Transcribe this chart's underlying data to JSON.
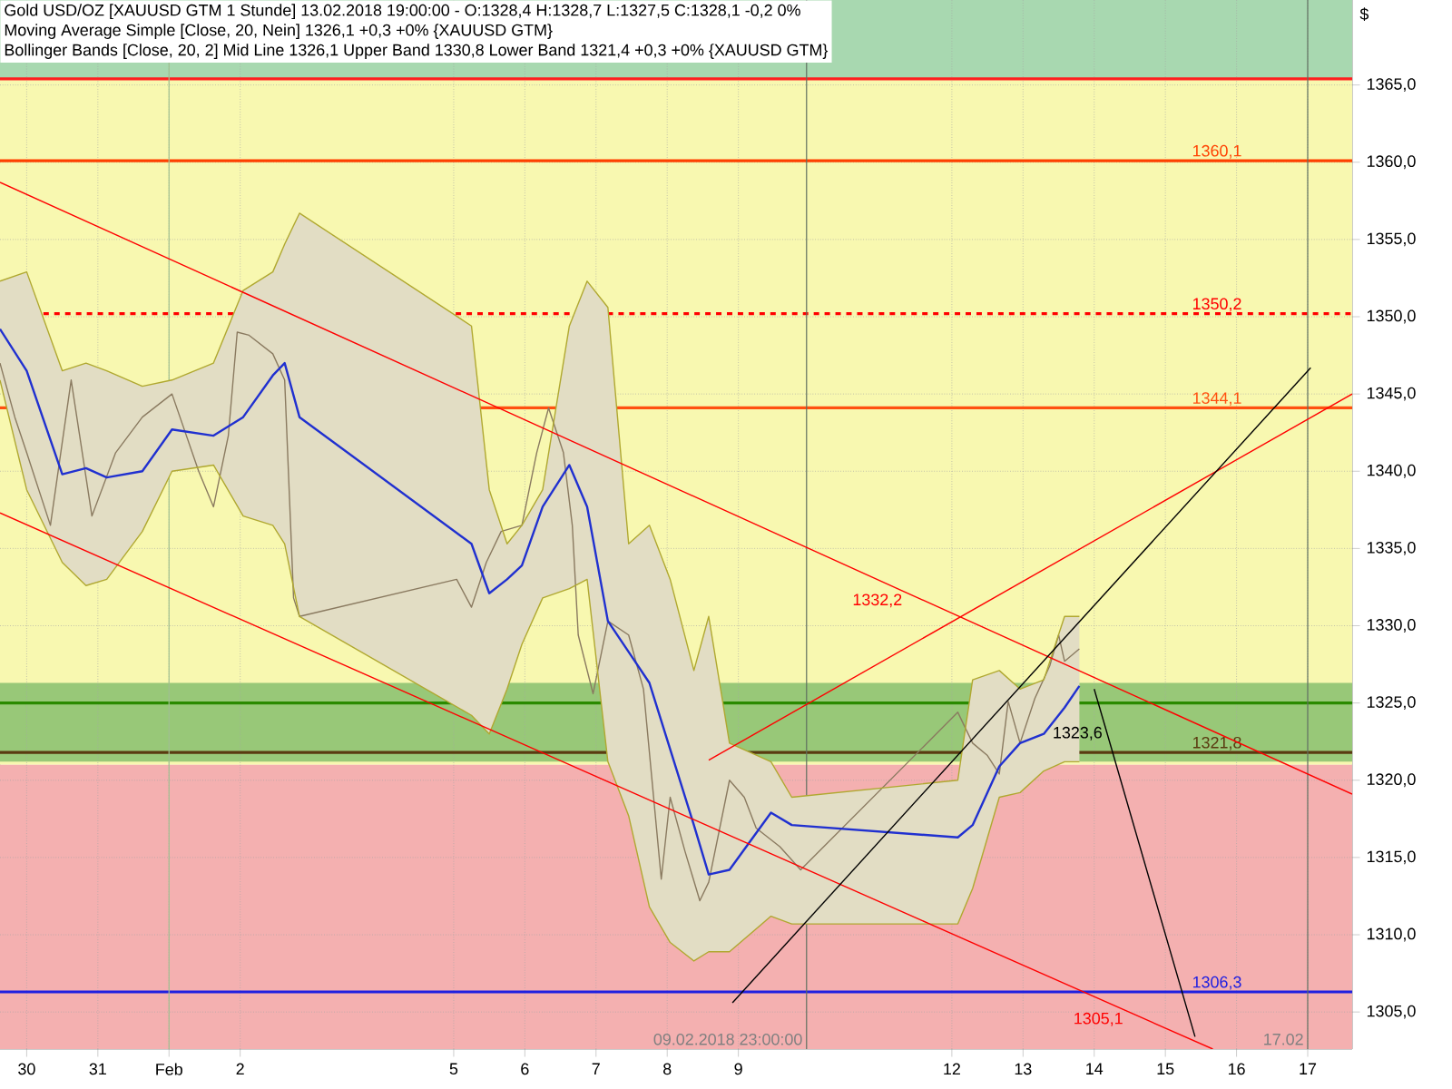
{
  "chart_data": {
    "type": "line",
    "title": "Gold USD/OZ [XAUUSD GTM  1 Stunde] 13.02.2018 19:00:00 - O:1328,4 H:1328,7 L:1327,5 C:1328,1 -0,2 0%",
    "ylabel": "$",
    "annotations": [
      "Moving Average Simple [Close, 20, Nein] 1326,1 +0,3 +0% {XAUUSD GTM}",
      "Bollinger Bands [Close, 20, 2] Mid Line 1326,1 Upper Band 1330,8 Lower Band 1321,4 +0,3 +0% {XAUUSD GTM}"
    ],
    "xlim": [
      "2018-01-29T15:00",
      "2018-02-17T15:00"
    ],
    "ylim": [
      1302.6,
      1370.5
    ],
    "xticks": [
      {
        "value": "2018-01-30",
        "label": "30"
      },
      {
        "value": "2018-01-31",
        "label": "31"
      },
      {
        "value": "2018-02-01",
        "label": "Feb"
      },
      {
        "value": "2018-02-02",
        "label": "2"
      },
      {
        "value": "2018-02-05",
        "label": "5"
      },
      {
        "value": "2018-02-06",
        "label": "6"
      },
      {
        "value": "2018-02-07",
        "label": "7"
      },
      {
        "value": "2018-02-08",
        "label": "8"
      },
      {
        "value": "2018-02-09",
        "label": "9"
      },
      {
        "value": "2018-02-12",
        "label": "12"
      },
      {
        "value": "2018-02-13",
        "label": "13"
      },
      {
        "value": "2018-02-14",
        "label": "14"
      },
      {
        "value": "2018-02-15",
        "label": "15"
      },
      {
        "value": "2018-02-16",
        "label": "16"
      },
      {
        "value": "2018-02-17",
        "label": "17"
      }
    ],
    "yticks": [
      {
        "value": 1305,
        "label": "1305,0"
      },
      {
        "value": 1310,
        "label": "1310,0"
      },
      {
        "value": 1315,
        "label": "1315,0"
      },
      {
        "value": 1320,
        "label": "1320,0"
      },
      {
        "value": 1325,
        "label": "1325,0"
      },
      {
        "value": 1330,
        "label": "1330,0"
      },
      {
        "value": 1335,
        "label": "1335,0"
      },
      {
        "value": 1340,
        "label": "1340,0"
      },
      {
        "value": 1345,
        "label": "1345,0"
      },
      {
        "value": 1350,
        "label": "1350,0"
      },
      {
        "value": 1355,
        "label": "1355,0"
      },
      {
        "value": 1360,
        "label": "1360,0"
      },
      {
        "value": 1365,
        "label": "1365,0"
      }
    ],
    "grid": true,
    "bands": [
      {
        "axis": "y",
        "from": 1365.4,
        "to": 1370.5,
        "color": "#a8d8b0"
      },
      {
        "axis": "y",
        "from": 1321.0,
        "to": 1365.4,
        "color": "#f8f8b0"
      },
      {
        "axis": "y",
        "from": 1302.6,
        "to": 1321.0,
        "color": "#f4b0b0"
      },
      {
        "axis": "y",
        "from": 1321.2,
        "to": 1326.3,
        "color": "#98c878"
      }
    ],
    "ref_lines": [
      {
        "axis": "y",
        "value": 1365.4,
        "label": null,
        "color": "#ff2020"
      },
      {
        "axis": "y",
        "value": 1360.1,
        "label": "1360,1",
        "color": "#ff4000"
      },
      {
        "axis": "y",
        "value": 1350.2,
        "label": "1350,2",
        "color": "#ff0000",
        "line_style": "dashed"
      },
      {
        "axis": "y",
        "value": 1344.1,
        "label": "1344,1",
        "color": "#ff5010"
      },
      {
        "axis": "y",
        "value": 1325.0,
        "label": null,
        "color": "#2a8a00"
      },
      {
        "axis": "y",
        "value": 1321.8,
        "label": "1321,8",
        "color": "#5a3a10"
      },
      {
        "axis": "y",
        "value": 1306.3,
        "label": "1306,3",
        "color": "#2020e0"
      },
      {
        "axis": "x",
        "value": "2018-02-01",
        "label": null,
        "color": "#a0c090"
      },
      {
        "axis": "x",
        "value": "2018-02-09T23:00",
        "label": "09.02.2018 23:00:00",
        "color": "#607060"
      },
      {
        "axis": "x",
        "value": "2018-02-17",
        "label": "17.02",
        "color": "#607060"
      }
    ],
    "series": [
      {
        "color": "#8a7a60",
        "x": [
          "2018-01-29T15:00",
          "2018-01-29T20:00",
          "2018-01-30T00:00",
          "2018-01-30T08:00",
          "2018-01-30T15:00",
          "2018-01-30T22:00",
          "2018-01-31T06:00",
          "2018-01-31T15:00",
          "2018-02-01T01:00",
          "2018-02-01T10:00",
          "2018-02-01T15:00",
          "2018-02-01T20:00",
          "2018-02-01T23:00",
          "2018-02-02T03:00",
          "2018-02-02T11:00",
          "2018-02-02T15:00",
          "2018-02-02T18:00",
          "2018-02-02T20:00",
          "2018-02-05T01:00",
          "2018-02-05T06:00",
          "2018-02-05T11:00",
          "2018-02-05T16:00",
          "2018-02-05T23:00",
          "2018-02-06T04:00",
          "2018-02-06T08:00",
          "2018-02-06T13:00",
          "2018-02-06T16:00",
          "2018-02-06T18:00",
          "2018-02-06T23:00",
          "2018-02-07T04:00",
          "2018-02-07T11:00",
          "2018-02-07T16:00",
          "2018-02-07T20:00",
          "2018-02-07T22:00",
          "2018-02-08T01:00",
          "2018-02-08T06:00",
          "2018-02-08T11:00",
          "2018-02-08T14:00",
          "2018-02-08T21:00",
          "2018-02-09T02:00",
          "2018-02-09T06:00",
          "2018-02-09T14:00",
          "2018-02-09T21:00",
          "2018-02-12T02:00",
          "2018-02-12T07:00",
          "2018-02-12T12:00",
          "2018-02-12T16:00",
          "2018-02-12T19:00",
          "2018-02-12T23:00",
          "2018-02-13T04:00",
          "2018-02-13T09:00",
          "2018-02-13T12:00",
          "2018-02-13T14:00",
          "2018-02-13T19:00"
        ],
        "values": [
          1347.0,
          1343.5,
          1341.2,
          1336.5,
          1345.9,
          1337.1,
          1341.2,
          1343.5,
          1345.0,
          1340.0,
          1337.7,
          1342.3,
          1349.0,
          1348.8,
          1347.6,
          1345.9,
          1331.8,
          1330.6,
          1333.0,
          1331.2,
          1334.1,
          1336.1,
          1336.5,
          1341.2,
          1344.1,
          1341.2,
          1336.5,
          1329.4,
          1325.6,
          1330.3,
          1329.4,
          1325.9,
          1317.7,
          1313.6,
          1318.9,
          1315.4,
          1312.2,
          1313.4,
          1320.0,
          1318.9,
          1316.9,
          1315.7,
          1314.2,
          1324.4,
          1322.4,
          1321.6,
          1320.4,
          1325.1,
          1322.4,
          1325.3,
          1327.4,
          1329.4,
          1327.7,
          1328.5
        ]
      },
      {
        "color": "#2030d0",
        "x": [
          "2018-01-29T15:00",
          "2018-01-30T00:00",
          "2018-01-30T12:00",
          "2018-01-30T20:00",
          "2018-01-31T03:00",
          "2018-01-31T15:00",
          "2018-02-01T01:00",
          "2018-02-01T15:00",
          "2018-02-02T01:00",
          "2018-02-02T11:00",
          "2018-02-02T15:00",
          "2018-02-02T20:00",
          "2018-02-05T06:00",
          "2018-02-05T12:00",
          "2018-02-05T18:00",
          "2018-02-05T23:00",
          "2018-02-06T06:00",
          "2018-02-06T15:00",
          "2018-02-06T21:00",
          "2018-02-07T04:00",
          "2018-02-07T11:00",
          "2018-02-07T18:00",
          "2018-02-08T01:00",
          "2018-02-08T09:00",
          "2018-02-08T14:00",
          "2018-02-08T21:00",
          "2018-02-09T11:00",
          "2018-02-09T18:00",
          "2018-02-12T02:00",
          "2018-02-12T07:00",
          "2018-02-12T16:00",
          "2018-02-12T23:00",
          "2018-02-13T07:00",
          "2018-02-13T14:00",
          "2018-02-13T19:00"
        ],
        "values": [
          1349.2,
          1346.5,
          1339.8,
          1340.2,
          1339.6,
          1340.0,
          1342.7,
          1342.3,
          1343.5,
          1346.2,
          1347.0,
          1343.5,
          1335.3,
          1332.1,
          1333.0,
          1333.9,
          1337.7,
          1340.4,
          1337.7,
          1330.3,
          1328.3,
          1326.3,
          1322.0,
          1317.1,
          1313.9,
          1314.2,
          1317.9,
          1317.1,
          1316.3,
          1317.1,
          1320.9,
          1322.4,
          1323.0,
          1324.7,
          1326.1
        ],
        "upper": [
          1352.3,
          1352.9,
          1346.5,
          1347.0,
          1346.5,
          1345.5,
          1345.9,
          1347.0,
          1351.7,
          1352.9,
          1354.7,
          1356.7,
          1349.4,
          1338.8,
          1335.3,
          1336.5,
          1338.8,
          1349.4,
          1352.3,
          1350.6,
          1335.3,
          1336.5,
          1333.0,
          1327.1,
          1330.6,
          1322.4,
          1321.2,
          1318.9,
          1320.0,
          1326.5,
          1327.1,
          1325.9,
          1326.5,
          1330.6,
          1330.6
        ],
        "lower": [
          1345.9,
          1338.8,
          1334.1,
          1332.6,
          1333.0,
          1336.1,
          1340.0,
          1340.4,
          1337.1,
          1336.5,
          1335.3,
          1330.6,
          1324.2,
          1323.0,
          1325.9,
          1328.8,
          1331.8,
          1332.4,
          1333.0,
          1321.2,
          1317.7,
          1311.8,
          1309.5,
          1308.3,
          1308.9,
          1308.9,
          1311.2,
          1310.7,
          1310.7,
          1313.0,
          1318.9,
          1319.2,
          1320.6,
          1321.2,
          1321.2
        ]
      },
      {
        "color": "#b0a830",
        "x": [
          "2018-01-29T15:00",
          "2018-01-30T00:00",
          "2018-01-30T12:00",
          "2018-01-30T20:00",
          "2018-01-31T03:00",
          "2018-01-31T15:00",
          "2018-02-01T01:00",
          "2018-02-01T15:00",
          "2018-02-02T01:00",
          "2018-02-02T11:00",
          "2018-02-02T15:00",
          "2018-02-02T20:00",
          "2018-02-05T06:00",
          "2018-02-05T12:00",
          "2018-02-05T18:00",
          "2018-02-05T23:00",
          "2018-02-06T06:00",
          "2018-02-06T15:00",
          "2018-02-06T21:00",
          "2018-02-07T04:00",
          "2018-02-07T11:00",
          "2018-02-07T18:00",
          "2018-02-08T01:00",
          "2018-02-08T09:00",
          "2018-02-08T14:00",
          "2018-02-08T21:00",
          "2018-02-09T11:00",
          "2018-02-09T18:00",
          "2018-02-12T02:00",
          "2018-02-12T07:00",
          "2018-02-12T16:00",
          "2018-02-12T23:00",
          "2018-02-13T07:00",
          "2018-02-13T14:00",
          "2018-02-13T19:00"
        ],
        "values": [
          1352.3,
          1352.9,
          1346.5,
          1347.0,
          1346.5,
          1345.5,
          1345.9,
          1347.0,
          1351.7,
          1352.9,
          1354.7,
          1356.7,
          1349.4,
          1338.8,
          1335.3,
          1336.5,
          1338.8,
          1349.4,
          1352.3,
          1350.6,
          1335.3,
          1336.5,
          1333.0,
          1327.1,
          1330.6,
          1322.4,
          1321.2,
          1318.9,
          1320.0,
          1326.5,
          1327.1,
          1325.9,
          1326.5,
          1330.6,
          1330.6
        ]
      },
      {
        "color": "#b0a830",
        "x": [
          "2018-01-29T15:00",
          "2018-01-30T00:00",
          "2018-01-30T12:00",
          "2018-01-30T20:00",
          "2018-01-31T03:00",
          "2018-01-31T15:00",
          "2018-02-01T01:00",
          "2018-02-01T15:00",
          "2018-02-02T01:00",
          "2018-02-02T11:00",
          "2018-02-02T15:00",
          "2018-02-02T20:00",
          "2018-02-05T06:00",
          "2018-02-05T12:00",
          "2018-02-05T18:00",
          "2018-02-05T23:00",
          "2018-02-06T06:00",
          "2018-02-06T15:00",
          "2018-02-06T21:00",
          "2018-02-07T04:00",
          "2018-02-07T11:00",
          "2018-02-07T18:00",
          "2018-02-08T01:00",
          "2018-02-08T09:00",
          "2018-02-08T14:00",
          "2018-02-08T21:00",
          "2018-02-09T11:00",
          "2018-02-09T18:00",
          "2018-02-12T02:00",
          "2018-02-12T07:00",
          "2018-02-12T16:00",
          "2018-02-12T23:00",
          "2018-02-13T07:00",
          "2018-02-13T14:00",
          "2018-02-13T19:00"
        ],
        "values": [
          1345.9,
          1338.8,
          1334.1,
          1332.6,
          1333.0,
          1336.1,
          1340.0,
          1340.4,
          1337.1,
          1336.5,
          1335.3,
          1330.6,
          1324.2,
          1323.0,
          1325.9,
          1328.8,
          1331.8,
          1332.4,
          1333.0,
          1321.2,
          1317.7,
          1311.8,
          1309.5,
          1308.3,
          1308.9,
          1308.9,
          1311.2,
          1310.7,
          1310.7,
          1313.0,
          1318.9,
          1319.2,
          1320.6,
          1321.2,
          1321.2
        ]
      },
      {
        "color": "#ff0000",
        "x": [
          "2018-01-29T15:00",
          "2018-02-11T08:00",
          "2018-02-17T15:00"
        ],
        "values": [
          1358.7,
          1332.2,
          1319.1
        ],
        "value_labels": [
          null,
          "1332,2",
          null
        ]
      },
      {
        "color": "#ff0000",
        "x": [
          "2018-01-29T15:00",
          "2018-02-14T10:30",
          "2018-02-15T16:00"
        ],
        "values": [
          1337.3,
          1305.1,
          1302.6
        ],
        "value_labels": [
          null,
          "1305,1",
          null
        ]
      },
      {
        "color": "#ff0000",
        "x": [
          "2018-02-08T14:00",
          "2018-02-17T15:00"
        ],
        "values": [
          1321.3,
          1345.0
        ]
      },
      {
        "color": "#000000",
        "x": [
          "2018-02-08T22:00",
          "2018-02-17T01:00"
        ],
        "values": [
          1305.6,
          1346.7
        ]
      },
      {
        "color": "#000000",
        "x": [
          "2018-02-14T00:00",
          "2018-02-14T03:30",
          "2018-02-15T10:00"
        ],
        "values": [
          1325.9,
          1323.6,
          1303.4
        ],
        "value_labels": [
          null,
          "1323,6",
          null
        ]
      }
    ]
  }
}
